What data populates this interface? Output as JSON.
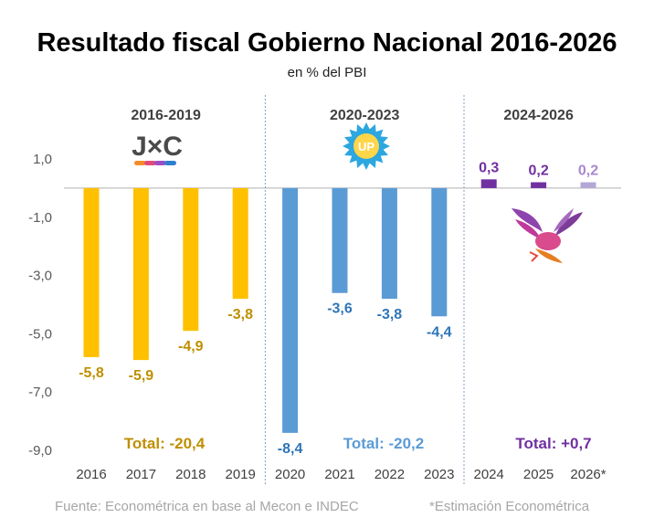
{
  "chart_data": {
    "type": "bar",
    "title": "Resultado fiscal Gobierno Nacional 2016-2026",
    "subtitle": "en % del PBI",
    "categories": [
      "2016",
      "2017",
      "2018",
      "2019",
      "2020",
      "2021",
      "2022",
      "2023",
      "2024",
      "2025",
      "2026*"
    ],
    "values": [
      -5.8,
      -5.9,
      -4.9,
      -3.8,
      -8.4,
      -3.6,
      -3.8,
      -4.4,
      0.3,
      0.2,
      0.2
    ],
    "value_labels": [
      "-5,8",
      "-5,9",
      "-4,9",
      "-3,8",
      "-8,4",
      "-3,6",
      "-3,8",
      "-4,4",
      "0,3",
      "0,2",
      "0,2"
    ],
    "ylim": [
      -9.0,
      1.0
    ],
    "yticks": [
      1.0,
      -1.0,
      -3.0,
      -5.0,
      -7.0,
      -9.0
    ],
    "ytick_labels": [
      "1,0",
      "-1,0",
      "-3,0",
      "-5,0",
      "-7,0",
      "-9,0"
    ],
    "grid": false,
    "periods": [
      {
        "label": "2016-2019",
        "total": "Total: -20,4",
        "logo": "J×C",
        "start": 0,
        "end": 3,
        "bar_color": "#FFC000",
        "label_color": "#BF8F00",
        "logo_name": "jxc-logo"
      },
      {
        "label": "2020-2023",
        "total": "Total: -20,2",
        "logo": "UP",
        "start": 4,
        "end": 7,
        "bar_color": "#5B9BD5",
        "label_color": "#2E75B6",
        "total_color": "#5B9BD5",
        "logo_name": "up-logo"
      },
      {
        "label": "2024-2026",
        "total": "Total: +0,7",
        "logo": "",
        "start": 8,
        "end": 10,
        "bar_color": "#7030A0",
        "label_color": "#7030A0",
        "logo_name": "lla-logo"
      }
    ],
    "last_bar_color": "#B4A7D6",
    "last_label_color": "#A987D0"
  },
  "footer": {
    "source": "Fuente: Econométrica en base al Mecon e INDEC",
    "note": "*Estimación Econométrica"
  }
}
